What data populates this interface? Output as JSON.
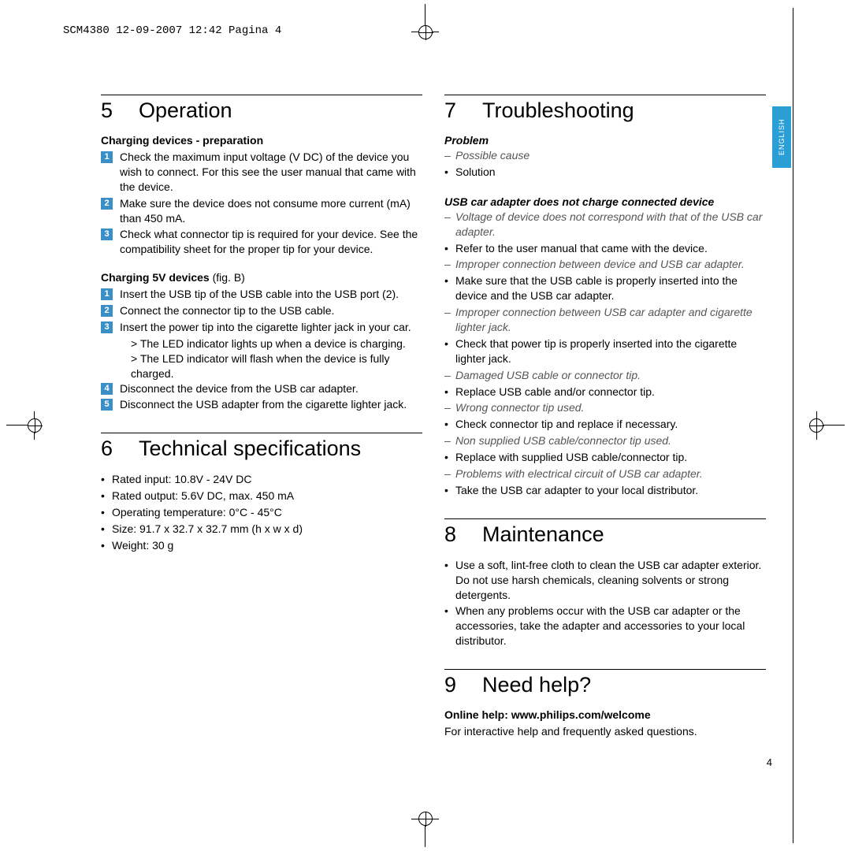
{
  "meta": {
    "header_text": "SCM4380  12-09-2007  12:42  Pagina 4",
    "language_tab": "ENGLISH",
    "page_number": "4"
  },
  "colors": {
    "badge_bg": "#3a8fc7",
    "lang_tab_bg": "#2a9fd6",
    "text": "#000000",
    "italic_muted": "#555555",
    "background": "#ffffff"
  },
  "typography": {
    "section_title_size_pt": 20,
    "body_size_pt": 10.5,
    "header_font": "Courier New"
  },
  "sections": {
    "s5": {
      "number": "5",
      "title": "Operation",
      "groups": [
        {
          "heading": "Charging devices - preparation",
          "steps": [
            "Check the maximum input voltage (V DC) of the device you wish to connect. For this see the user manual that came with the device.",
            "Make sure the device does not consume more current (mA) than 450 mA.",
            "Check what connector tip is required for your device. See the compatibility sheet for the proper tip for your device."
          ]
        },
        {
          "heading": "Charging 5V devices",
          "heading_suffix": " (fig. B)",
          "steps": [
            "Insert the USB tip of the USB cable into the USB port (2).",
            "Connect the connector tip to the USB cable.",
            "Insert the power tip into the cigarette lighter jack in your car.",
            "Disconnect the device from the USB car adapter.",
            "Disconnect the USB adapter from the cigarette lighter jack."
          ],
          "substeps_after_index": 2,
          "substeps": [
            "> The LED indicator lights up when a device is charging.",
            "> The LED indicator will flash when the device is fully charged."
          ]
        }
      ]
    },
    "s6": {
      "number": "6",
      "title": "Technical specifications",
      "bullets": [
        "Rated input: 10.8V - 24V DC",
        "Rated output: 5.6V DC, max. 450 mA",
        "Operating temperature: 0°C - 45°C",
        "Size: 91.7 x 32.7 x 32.7 mm (h x w x d)",
        "Weight: 30 g"
      ]
    },
    "s7": {
      "number": "7",
      "title": "Troubleshooting",
      "problem_label": "Problem",
      "possible_cause_label": "Possible cause",
      "solution_label": "Solution",
      "issue_heading": "USB car adapter does not charge connected device",
      "items": [
        {
          "type": "cause",
          "text": "Voltage of device does not correspond with that of the USB car adapter."
        },
        {
          "type": "solution",
          "text": "Refer to the user manual that came with the device."
        },
        {
          "type": "cause",
          "text": "Improper connection between device and USB car adapter."
        },
        {
          "type": "solution",
          "text": "Make sure that the USB cable is properly inserted into the device and the USB car adapter."
        },
        {
          "type": "cause",
          "text": "Improper connection between USB car adapter and cigarette lighter jack."
        },
        {
          "type": "solution",
          "text": "Check that power tip is properly inserted into the cigarette lighter jack."
        },
        {
          "type": "cause",
          "text": "Damaged USB cable or connector tip."
        },
        {
          "type": "solution",
          "text": "Replace USB cable and/or connector tip."
        },
        {
          "type": "cause",
          "text": "Wrong connector tip used."
        },
        {
          "type": "solution",
          "text": "Check connector tip and replace if necessary."
        },
        {
          "type": "cause",
          "text": "Non supplied USB cable/connector tip used."
        },
        {
          "type": "solution",
          "text": "Replace with supplied USB cable/connector tip."
        },
        {
          "type": "cause",
          "text": "Problems with electrical circuit of USB car adapter."
        },
        {
          "type": "solution",
          "text": "Take the USB car adapter to your local distributor."
        }
      ]
    },
    "s8": {
      "number": "8",
      "title": "Maintenance",
      "bullets": [
        "Use a soft, lint-free cloth to clean the USB car adapter exterior. Do not use harsh chemicals, cleaning solvents or strong detergents.",
        "When any problems occur with the USB car adapter or the accessories, take the adapter and accessories to your local distributor."
      ]
    },
    "s9": {
      "number": "9",
      "title": "Need help?",
      "online_help_label": "Online help: www.philips.com/welcome",
      "online_help_text": "For interactive help and frequently asked questions."
    }
  }
}
